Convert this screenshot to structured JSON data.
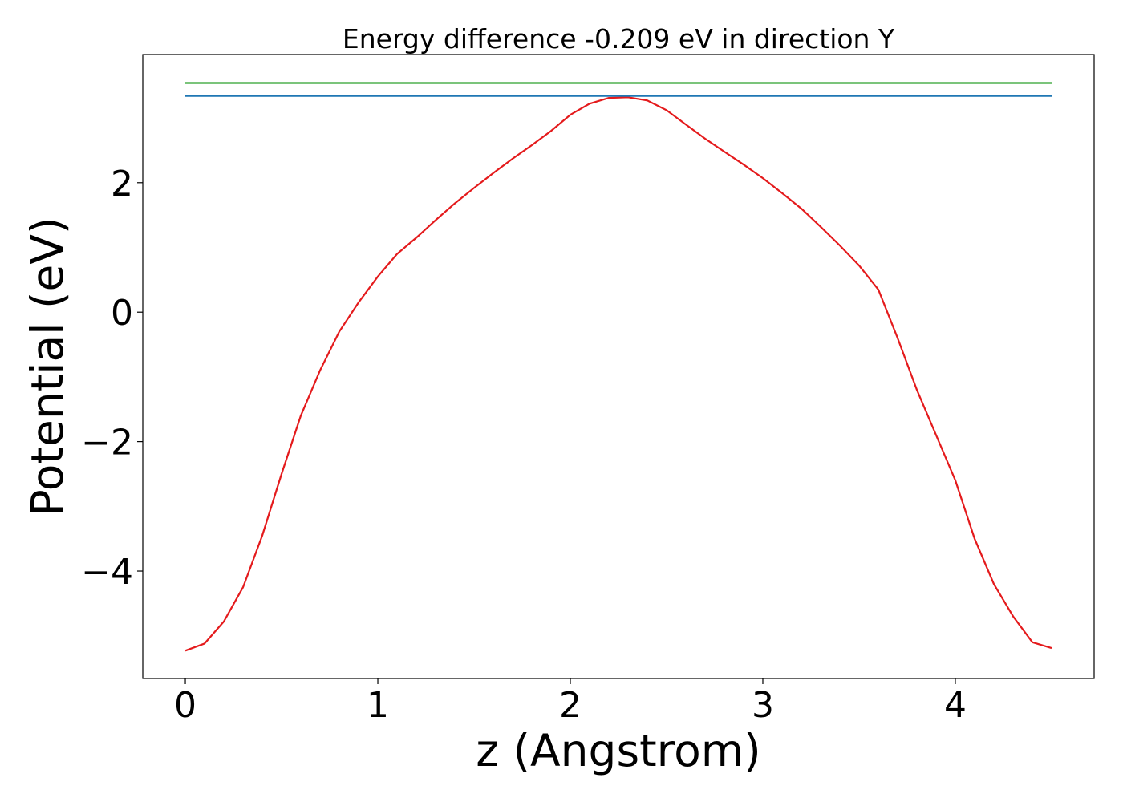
{
  "chart_data": {
    "type": "line",
    "title": "Energy difference -0.209 eV in direction Y",
    "xlabel": "z (Angstrom)",
    "ylabel": "Potential (eV)",
    "xlim": [
      -0.221,
      4.721
    ],
    "ylim": [
      -5.66,
      3.98
    ],
    "xticks": [
      0,
      1,
      2,
      3,
      4
    ],
    "yticks": [
      {
        "value": -4,
        "label": "−4"
      },
      {
        "value": -2,
        "label": "−2"
      },
      0,
      2
    ],
    "series": [
      {
        "color": "#e41a1c",
        "x": [
          0,
          0.1,
          0.2,
          0.3,
          0.4,
          0.5,
          0.6,
          0.7,
          0.8,
          0.9,
          1.0,
          1.1,
          1.2,
          1.3,
          1.4,
          1.5,
          1.6,
          1.7,
          1.8,
          1.9,
          2.0,
          2.1,
          2.2,
          2.3,
          2.4,
          2.5,
          2.6,
          2.7,
          2.8,
          2.9,
          3.0,
          3.1,
          3.2,
          3.3,
          3.4,
          3.5,
          3.6,
          3.7,
          3.8,
          3.9,
          4.0,
          4.1,
          4.2,
          4.3,
          4.4,
          4.5
        ],
        "values": [
          -5.23,
          -5.12,
          -4.78,
          -4.25,
          -3.45,
          -2.5,
          -1.6,
          -0.9,
          -0.3,
          0.15,
          0.55,
          0.9,
          1.15,
          1.42,
          1.68,
          1.92,
          2.15,
          2.37,
          2.58,
          2.8,
          3.05,
          3.22,
          3.31,
          3.32,
          3.27,
          3.12,
          2.9,
          2.68,
          2.48,
          2.28,
          2.07,
          1.84,
          1.6,
          1.32,
          1.03,
          0.72,
          0.35,
          -0.4,
          -1.2,
          -1.9,
          -2.6,
          -3.5,
          -4.2,
          -4.7,
          -5.1,
          -5.19
        ]
      },
      {
        "color": "#1f77b4",
        "x": [
          0,
          4.5
        ],
        "values": [
          3.34,
          3.34
        ]
      },
      {
        "color": "#2ca02c",
        "x": [
          0,
          4.5
        ],
        "values": [
          3.54,
          3.54
        ]
      }
    ]
  }
}
